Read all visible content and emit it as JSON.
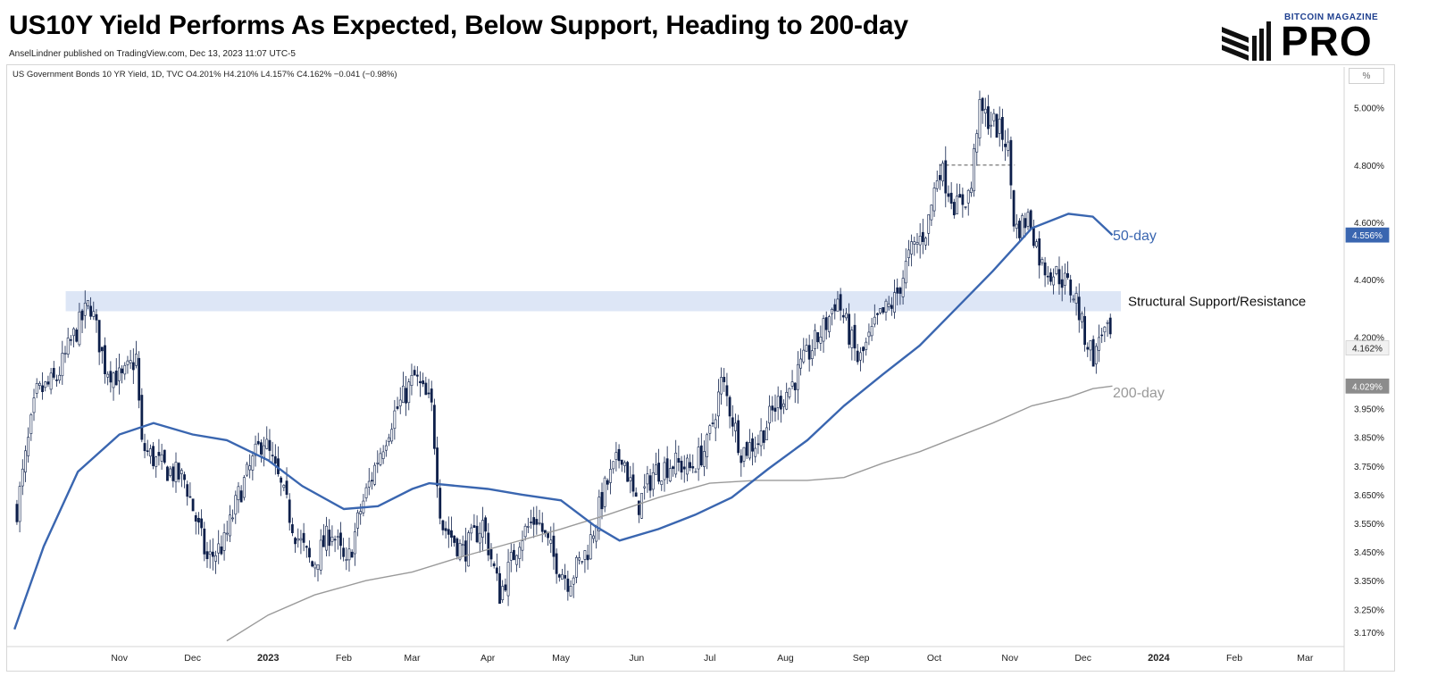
{
  "header": {
    "title": "US10Y Yield Performs As Expected, Below Support, Heading to 200-day",
    "byline": "AnselLindner published on TradingView.com, Dec 13, 2023 11:07 UTC-5"
  },
  "logo": {
    "top_text": "BITCOIN MAGAZINE",
    "main_text": "PRO"
  },
  "chart_header": {
    "symbol_line": "US Government Bonds 10 YR Yield, 1D, TVC  O4.201%  H4.210%  L4.157%  C4.162%  −0.041 (−0.98%)",
    "unit_button": "%"
  },
  "colors": {
    "ma50": "#3a66b0",
    "ma200": "#9a9a9a",
    "candle_up": "#ffffff",
    "candle_down": "#0d1f4a",
    "zone": "#dde6f6"
  },
  "chart_data": {
    "type": "candlestick",
    "title": "US10Y Yield Performs As Expected, Below Support, Heading to 200-day",
    "y_axis": {
      "unit": "%",
      "ylim": [
        3.12,
        5.08
      ],
      "ticks": [
        "5.000%",
        "4.800%",
        "4.600%",
        "4.400%",
        "4.200%",
        "3.950%",
        "3.850%",
        "3.750%",
        "3.650%",
        "3.550%",
        "3.450%",
        "3.350%",
        "3.250%",
        "3.170%"
      ]
    },
    "x_axis": {
      "ticks": [
        "Nov",
        "Dec",
        "2023",
        "Feb",
        "Mar",
        "Apr",
        "May",
        "Jun",
        "Jul",
        "Aug",
        "Sep",
        "Oct",
        "Nov",
        "Dec",
        "2024",
        "Feb",
        "Mar"
      ]
    },
    "price_tags": [
      {
        "label": "4.556%",
        "value": 4.556,
        "style": "blue"
      },
      {
        "label": "4.162%",
        "value": 4.162,
        "style": "light"
      },
      {
        "label": "4.029%",
        "value": 4.029,
        "style": "gray"
      }
    ],
    "zone": {
      "label": "Structural Support/Resistance",
      "from": 4.29,
      "to": 4.36,
      "start": "2022-10-10"
    },
    "dashed_level": {
      "value": 4.8,
      "from": "2023-10-03",
      "to": "2023-11-03"
    },
    "series": [
      {
        "name": "50-day",
        "points": [
          [
            "2022-09-19",
            3.18
          ],
          [
            "2022-10-01",
            3.47
          ],
          [
            "2022-10-15",
            3.73
          ],
          [
            "2022-11-01",
            3.86
          ],
          [
            "2022-11-15",
            3.9
          ],
          [
            "2022-12-01",
            3.86
          ],
          [
            "2022-12-15",
            3.84
          ],
          [
            "2023-01-01",
            3.77
          ],
          [
            "2023-01-15",
            3.68
          ],
          [
            "2023-02-01",
            3.6
          ],
          [
            "2023-02-15",
            3.61
          ],
          [
            "2023-03-01",
            3.67
          ],
          [
            "2023-03-08",
            3.69
          ],
          [
            "2023-03-20",
            3.68
          ],
          [
            "2023-04-01",
            3.67
          ],
          [
            "2023-04-15",
            3.65
          ],
          [
            "2023-05-01",
            3.63
          ],
          [
            "2023-05-15",
            3.54
          ],
          [
            "2023-05-25",
            3.49
          ],
          [
            "2023-06-10",
            3.53
          ],
          [
            "2023-06-25",
            3.58
          ],
          [
            "2023-07-10",
            3.64
          ],
          [
            "2023-07-25",
            3.74
          ],
          [
            "2023-08-10",
            3.84
          ],
          [
            "2023-08-25",
            3.96
          ],
          [
            "2023-09-10",
            4.07
          ],
          [
            "2023-09-25",
            4.17
          ],
          [
            "2023-10-10",
            4.3
          ],
          [
            "2023-10-25",
            4.43
          ],
          [
            "2023-11-10",
            4.58
          ],
          [
            "2023-11-25",
            4.63
          ],
          [
            "2023-12-05",
            4.62
          ],
          [
            "2023-12-13",
            4.556
          ]
        ]
      },
      {
        "name": "200-day",
        "points": [
          [
            "2022-12-15",
            3.14
          ],
          [
            "2023-01-01",
            3.23
          ],
          [
            "2023-01-20",
            3.3
          ],
          [
            "2023-02-10",
            3.35
          ],
          [
            "2023-03-01",
            3.38
          ],
          [
            "2023-03-20",
            3.43
          ],
          [
            "2023-04-10",
            3.48
          ],
          [
            "2023-05-01",
            3.53
          ],
          [
            "2023-05-20",
            3.58
          ],
          [
            "2023-06-10",
            3.64
          ],
          [
            "2023-07-01",
            3.69
          ],
          [
            "2023-07-20",
            3.7
          ],
          [
            "2023-08-10",
            3.7
          ],
          [
            "2023-08-25",
            3.71
          ],
          [
            "2023-09-10",
            3.76
          ],
          [
            "2023-09-25",
            3.8
          ],
          [
            "2023-10-10",
            3.85
          ],
          [
            "2023-10-25",
            3.9
          ],
          [
            "2023-11-10",
            3.96
          ],
          [
            "2023-11-25",
            3.99
          ],
          [
            "2023-12-05",
            4.02
          ],
          [
            "2023-12-13",
            4.029
          ]
        ]
      }
    ],
    "candles_close_path": [
      [
        "2022-09-20",
        3.6
      ],
      [
        "2022-09-28",
        4.0
      ],
      [
        "2022-10-06",
        4.05
      ],
      [
        "2022-10-12",
        4.18
      ],
      [
        "2022-10-20",
        4.32
      ],
      [
        "2022-10-26",
        4.1
      ],
      [
        "2022-11-02",
        4.05
      ],
      [
        "2022-11-08",
        4.13
      ],
      [
        "2022-11-10",
        3.82
      ],
      [
        "2022-11-18",
        3.75
      ],
      [
        "2022-11-28",
        3.7
      ],
      [
        "2022-12-07",
        3.42
      ],
      [
        "2022-12-14",
        3.48
      ],
      [
        "2022-12-20",
        3.65
      ],
      [
        "2022-12-30",
        3.85
      ],
      [
        "2023-01-06",
        3.68
      ],
      [
        "2023-01-12",
        3.52
      ],
      [
        "2023-01-19",
        3.4
      ],
      [
        "2023-01-27",
        3.53
      ],
      [
        "2023-02-02",
        3.39
      ],
      [
        "2023-02-08",
        3.6
      ],
      [
        "2023-02-15",
        3.78
      ],
      [
        "2023-02-21",
        3.92
      ],
      [
        "2023-03-02",
        4.06
      ],
      [
        "2023-03-09",
        3.95
      ],
      [
        "2023-03-13",
        3.55
      ],
      [
        "2023-03-22",
        3.45
      ],
      [
        "2023-03-30",
        3.55
      ],
      [
        "2023-04-06",
        3.3
      ],
      [
        "2023-04-14",
        3.5
      ],
      [
        "2023-04-21",
        3.57
      ],
      [
        "2023-04-28",
        3.43
      ],
      [
        "2023-05-04",
        3.35
      ],
      [
        "2023-05-12",
        3.46
      ],
      [
        "2023-05-19",
        3.67
      ],
      [
        "2023-05-26",
        3.8
      ],
      [
        "2023-06-01",
        3.6
      ],
      [
        "2023-06-08",
        3.73
      ],
      [
        "2023-06-16",
        3.76
      ],
      [
        "2023-06-23",
        3.74
      ],
      [
        "2023-06-30",
        3.82
      ],
      [
        "2023-07-06",
        4.05
      ],
      [
        "2023-07-14",
        3.8
      ],
      [
        "2023-07-21",
        3.84
      ],
      [
        "2023-07-28",
        3.96
      ],
      [
        "2023-08-04",
        4.04
      ],
      [
        "2023-08-11",
        4.15
      ],
      [
        "2023-08-18",
        4.25
      ],
      [
        "2023-08-22",
        4.34
      ],
      [
        "2023-08-31",
        4.11
      ],
      [
        "2023-09-08",
        4.26
      ],
      [
        "2023-09-15",
        4.33
      ],
      [
        "2023-09-21",
        4.49
      ],
      [
        "2023-09-28",
        4.58
      ],
      [
        "2023-10-03",
        4.8
      ],
      [
        "2023-10-10",
        4.65
      ],
      [
        "2023-10-16",
        4.71
      ],
      [
        "2023-10-19",
        4.99
      ],
      [
        "2023-10-25",
        4.95
      ],
      [
        "2023-10-31",
        4.88
      ],
      [
        "2023-11-03",
        4.57
      ],
      [
        "2023-11-09",
        4.62
      ],
      [
        "2023-11-14",
        4.45
      ],
      [
        "2023-11-22",
        4.41
      ],
      [
        "2023-11-28",
        4.34
      ],
      [
        "2023-12-01",
        4.22
      ],
      [
        "2023-12-06",
        4.12
      ],
      [
        "2023-12-08",
        4.23
      ],
      [
        "2023-12-12",
        4.2
      ],
      [
        "2023-12-13",
        4.162
      ]
    ],
    "annotations": [
      "50-day",
      "200-day",
      "Structural Support/Resistance"
    ]
  }
}
